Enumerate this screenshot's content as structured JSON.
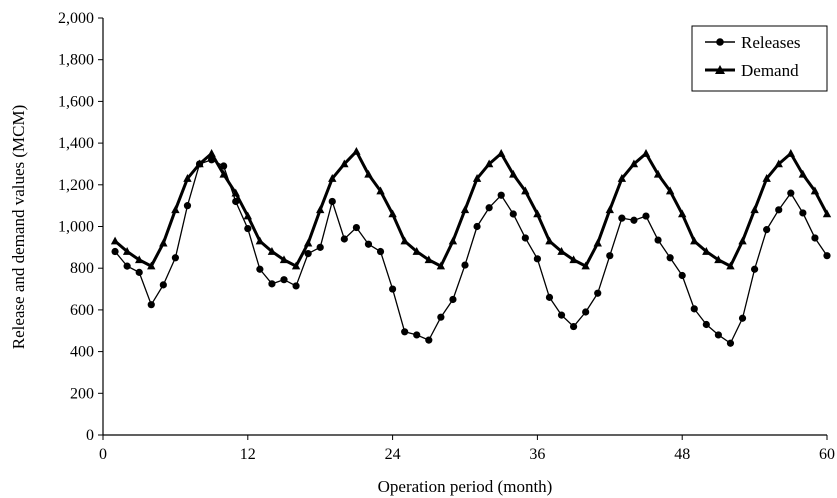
{
  "chart_data": {
    "type": "line",
    "title": "",
    "xlabel": "Operation period (month)",
    "ylabel": "Release and demand values (MCM)",
    "xlim": [
      0,
      60
    ],
    "ylim": [
      0,
      2000
    ],
    "x_ticks": [
      0,
      12,
      24,
      36,
      48,
      60
    ],
    "x_tick_labels": [
      "0",
      "12",
      "24",
      "36",
      "48",
      "60"
    ],
    "y_ticks": [
      0,
      200,
      400,
      600,
      800,
      1000,
      1200,
      1400,
      1600,
      1800,
      2000
    ],
    "y_tick_labels": [
      "0",
      "200",
      "400",
      "600",
      "800",
      "1,000",
      "1,200",
      "1,400",
      "1,600",
      "1,800",
      "2,000"
    ],
    "grid": false,
    "legend_position": "top-right",
    "x": [
      1,
      2,
      3,
      4,
      5,
      6,
      7,
      8,
      9,
      10,
      11,
      12,
      13,
      14,
      15,
      16,
      17,
      18,
      19,
      20,
      21,
      22,
      23,
      24,
      25,
      26,
      27,
      28,
      29,
      30,
      31,
      32,
      33,
      34,
      35,
      36,
      37,
      38,
      39,
      40,
      41,
      42,
      43,
      44,
      45,
      46,
      47,
      48,
      49,
      50,
      51,
      52,
      53,
      54,
      55,
      56,
      57,
      58,
      59,
      60
    ],
    "series": [
      {
        "name": "Releases",
        "marker": "circle",
        "color": "#000000",
        "values": [
          880,
          810,
          780,
          625,
          720,
          850,
          1100,
          1300,
          1320,
          1290,
          1120,
          990,
          795,
          725,
          745,
          715,
          870,
          900,
          1120,
          940,
          995,
          915,
          880,
          700,
          495,
          480,
          455,
          565,
          650,
          815,
          1000,
          1090,
          1150,
          1060,
          945,
          845,
          660,
          575,
          520,
          590,
          680,
          860,
          1040,
          1030,
          1050,
          935,
          850,
          765,
          605,
          530,
          480,
          440,
          560,
          795,
          985,
          1080,
          1160,
          1065,
          945,
          860
        ]
      },
      {
        "name": "Demand",
        "marker": "triangle",
        "color": "#000000",
        "values": [
          930,
          880,
          840,
          810,
          920,
          1080,
          1230,
          1300,
          1350,
          1250,
          1160,
          1050,
          930,
          880,
          840,
          810,
          920,
          1080,
          1230,
          1300,
          1360,
          1250,
          1170,
          1060,
          930,
          880,
          840,
          810,
          930,
          1080,
          1230,
          1300,
          1350,
          1250,
          1170,
          1060,
          930,
          880,
          840,
          810,
          920,
          1080,
          1230,
          1300,
          1350,
          1250,
          1170,
          1060,
          930,
          880,
          840,
          810,
          930,
          1080,
          1230,
          1300,
          1350,
          1250,
          1170,
          1060
        ]
      }
    ]
  }
}
